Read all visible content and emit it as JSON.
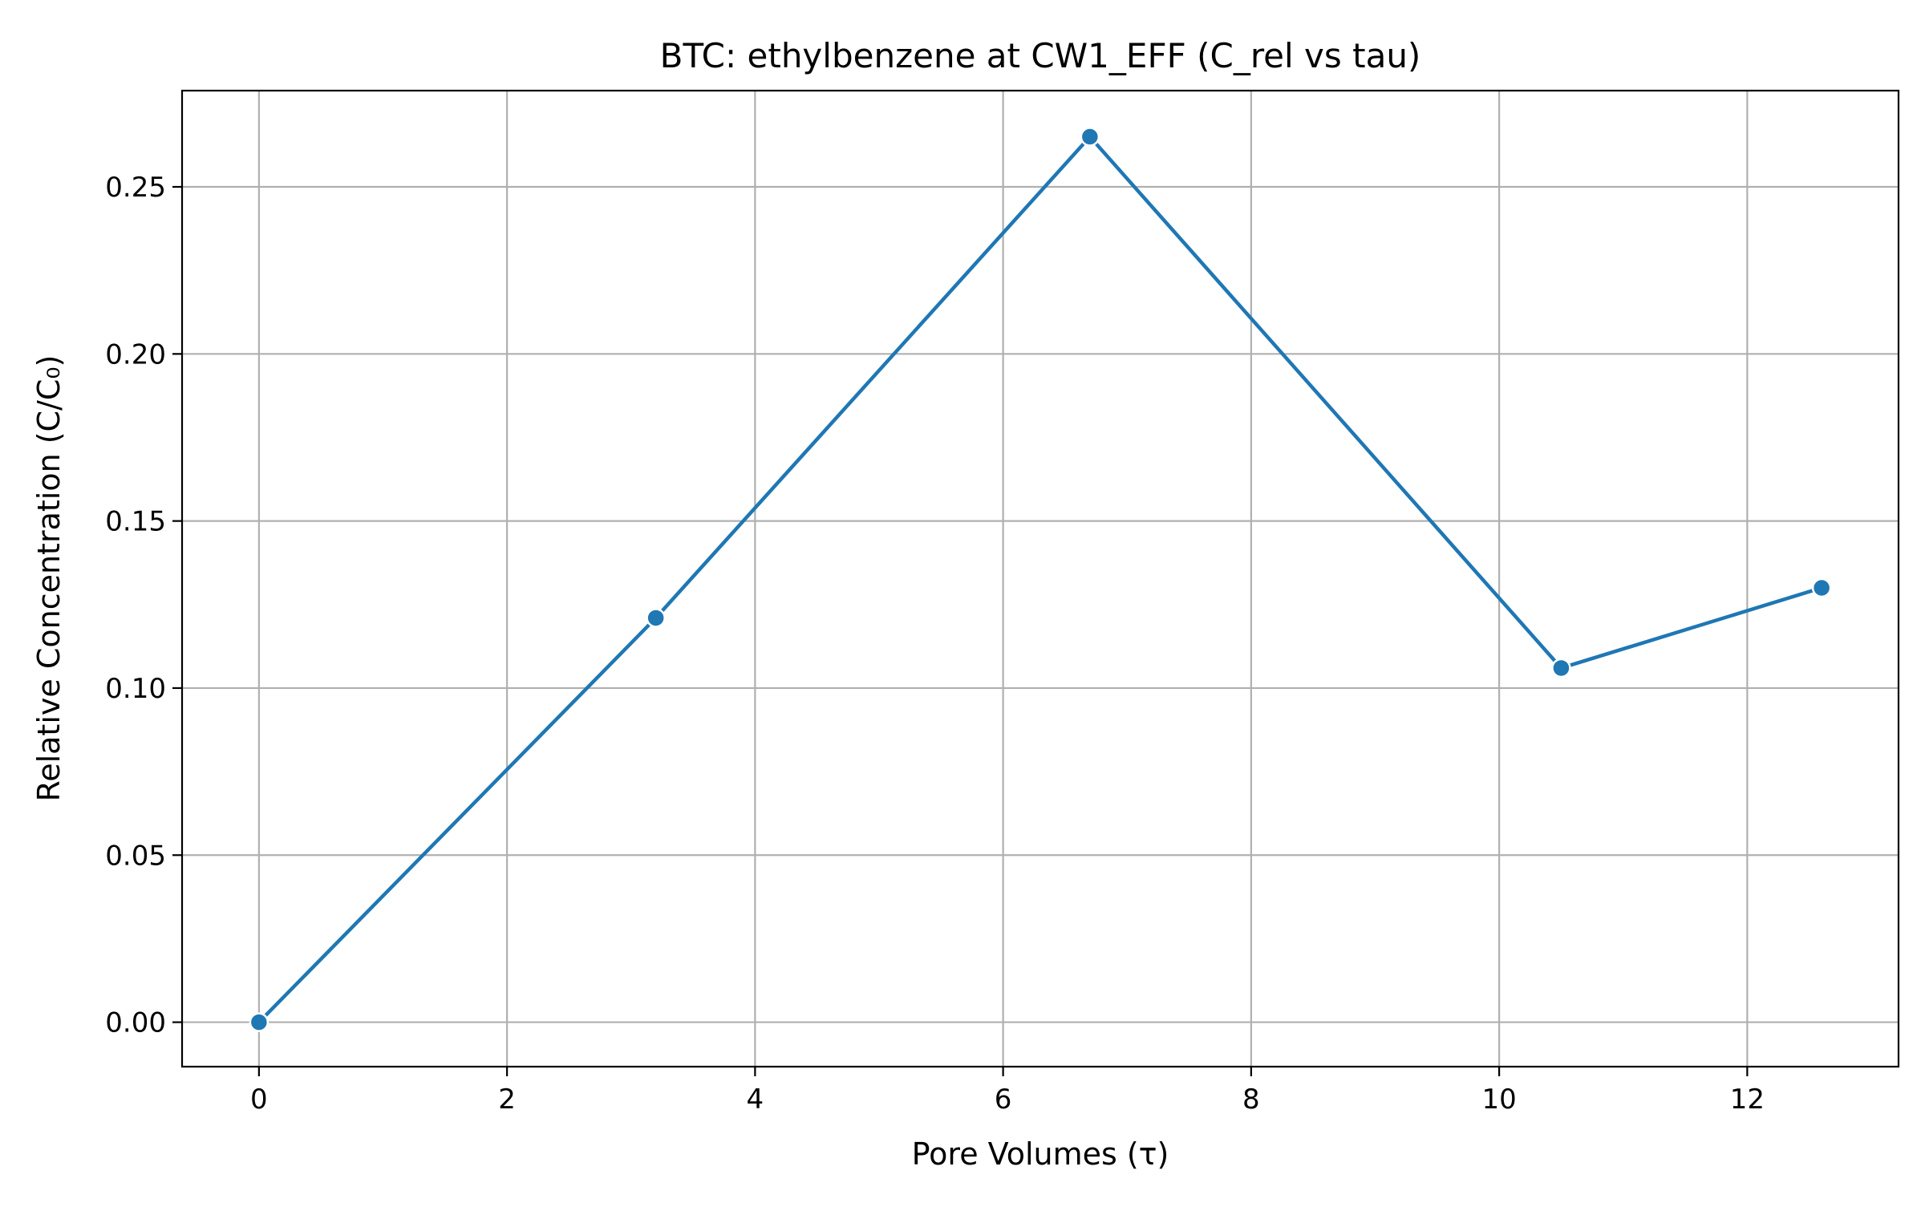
{
  "chart_data": {
    "type": "line",
    "title": "BTC: ethylbenzene at CW1_EFF (C_rel vs tau)",
    "xlabel": "Pore Volumes (τ)",
    "ylabel": "Relative Concentration (C/C₀)",
    "xlim": [
      -0.62,
      13.22
    ],
    "ylim": [
      -0.0133,
      0.2788
    ],
    "xticks": [
      0,
      2,
      4,
      6,
      8,
      10,
      12
    ],
    "xtick_labels": [
      "0",
      "2",
      "4",
      "6",
      "8",
      "10",
      "12"
    ],
    "yticks": [
      0.0,
      0.05,
      0.1,
      0.15,
      0.2,
      0.25
    ],
    "ytick_labels": [
      "0.00",
      "0.05",
      "0.10",
      "0.15",
      "0.20",
      "0.25"
    ],
    "grid": true,
    "series": [
      {
        "x": [
          0,
          3.2,
          6.7,
          10.5,
          12.6
        ],
        "y": [
          0.0,
          0.121,
          0.265,
          0.106,
          0.13
        ],
        "color": "#1f77b4",
        "marker": "circle"
      }
    ]
  }
}
